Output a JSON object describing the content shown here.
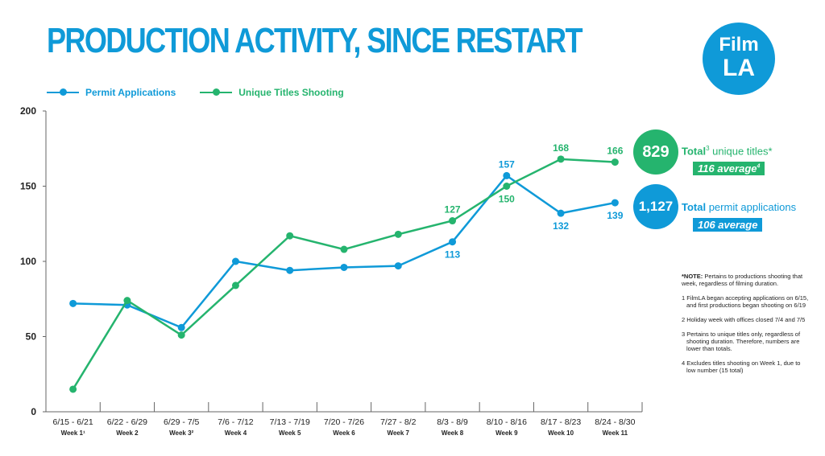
{
  "title": "PRODUCTION ACTIVITY, SINCE RESTART",
  "logo": {
    "line1": "Film",
    "line2": "LA"
  },
  "colors": {
    "permits": "#0f9ad8",
    "titles": "#25b46e"
  },
  "summary": {
    "titles": {
      "total": "829",
      "label_bold": "Total",
      "sup": "3",
      "label_rest": " unique titles*",
      "average": "116 average",
      "average_sup": "4"
    },
    "permits": {
      "total": "1,127",
      "label_bold": "Total",
      "label_rest": " permit applications",
      "average": "106 average"
    }
  },
  "notes": [
    {
      "bold": "*NOTE:",
      "text": " Pertains to productions shooting that week, regardless of filming duration."
    },
    {
      "bold": "",
      "text": "1 FilmLA began accepting applications on 6/15, and first productions began shooting on 6/19"
    },
    {
      "bold": "",
      "text": "2 Holiday week with offices closed 7/4 and 7/5"
    },
    {
      "bold": "",
      "text": "3 Pertains to unique titles only, regardless of shooting duration. Therefore, numbers are lower than totals."
    },
    {
      "bold": "",
      "text": "4 Excludes titles shooting on Week 1, due to low number (15 total)"
    }
  ],
  "chart_data": {
    "type": "line",
    "title": "PRODUCTION ACTIVITY, SINCE RESTART",
    "categories": [
      "6/15 - 6/21",
      "6/22 - 6/29",
      "6/29 - 7/5",
      "7/6 - 7/12",
      "7/13 - 7/19",
      "7/20 - 7/26",
      "7/27 - 8/2",
      "8/3 - 8/9",
      "8/10 - 8/16",
      "8/17 - 8/23",
      "8/24 - 8/30"
    ],
    "week_labels": [
      "Week 1¹",
      "Week 2",
      "Week 3²",
      "Week 4",
      "Week 5",
      "Week 6",
      "Week 7",
      "Week 8",
      "Week 9",
      "Week 10",
      "Week 11"
    ],
    "ylim": [
      0,
      200
    ],
    "yticks": [
      0,
      50,
      100,
      150,
      200
    ],
    "grid": false,
    "legend": "top-left",
    "series": [
      {
        "name": "Permit Applications",
        "color": "#0f9ad8",
        "values": [
          72,
          71,
          56,
          100,
          94,
          96,
          97,
          113,
          157,
          132,
          139
        ],
        "labeled": [
          7,
          8,
          9,
          10
        ]
      },
      {
        "name": "Unique Titles Shooting",
        "color": "#25b46e",
        "values": [
          15,
          74,
          51,
          84,
          117,
          108,
          118,
          127,
          150,
          168,
          166
        ],
        "labeled": [
          7,
          8,
          9,
          10
        ]
      }
    ]
  }
}
